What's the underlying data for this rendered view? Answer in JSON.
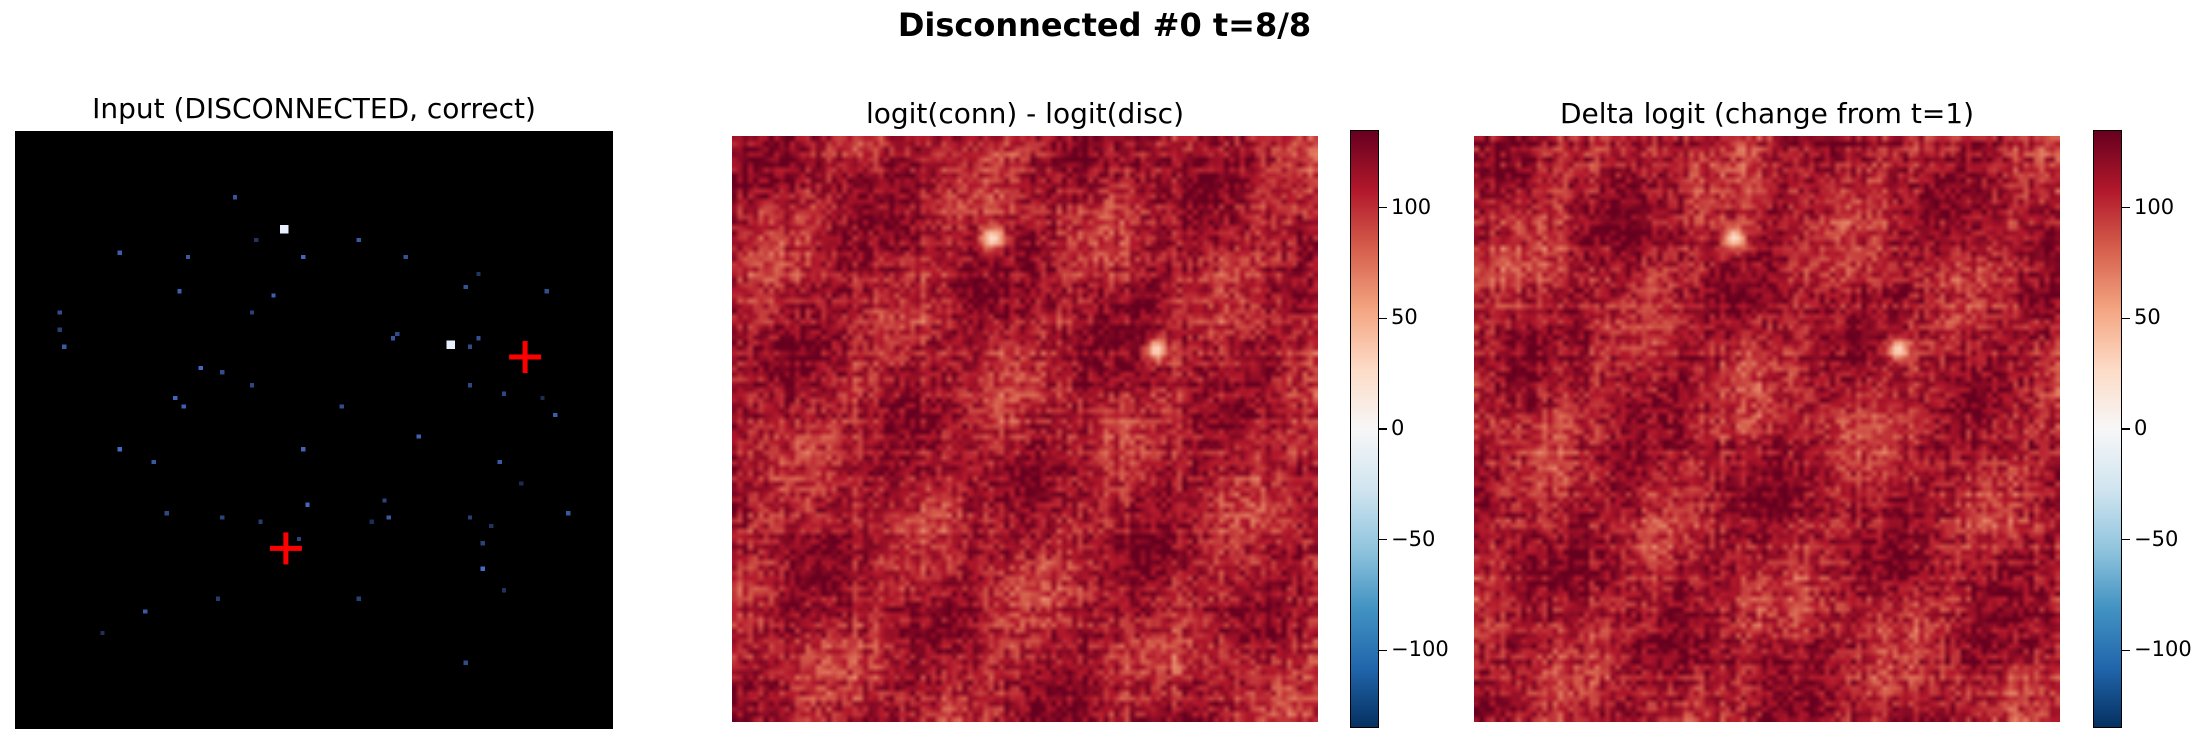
{
  "figure": {
    "title": "Disconnected #0  t=8/8"
  },
  "chart_data": [
    {
      "type": "heatmap",
      "title": "Input (DISCONNECTED, correct)",
      "colormap": "Blues_r",
      "background": "#000000",
      "markers": [
        {
          "symbol": "+",
          "color": "#ff0000",
          "x": 0.853,
          "y": 0.378
        },
        {
          "symbol": "+",
          "color": "#ff0000",
          "x": 0.453,
          "y": 0.698
        }
      ],
      "axes": "off"
    },
    {
      "type": "heatmap",
      "title": "logit(conn) - logit(disc)",
      "colormap": "RdBu_r",
      "vmin": -135,
      "vmax": 135,
      "colorbar_ticks": [
        "100",
        "50",
        "0",
        "−50",
        "−100"
      ],
      "colorbar_tick_values": [
        100,
        50,
        0,
        -50,
        -100
      ],
      "hotspots": [
        {
          "x": 0.44,
          "y": 0.17,
          "value": 20
        },
        {
          "x": 0.72,
          "y": 0.36,
          "value": 25
        }
      ],
      "axes": "off"
    },
    {
      "type": "heatmap",
      "title": "Delta logit (change from t=1)",
      "colormap": "RdBu_r",
      "vmin": -135,
      "vmax": 135,
      "colorbar_ticks": [
        "100",
        "50",
        "0",
        "−50",
        "−100"
      ],
      "colorbar_tick_values": [
        100,
        50,
        0,
        -50,
        -100
      ],
      "hotspots": [
        {
          "x": 0.44,
          "y": 0.17,
          "value": 20
        },
        {
          "x": 0.72,
          "y": 0.36,
          "value": 25
        }
      ],
      "axes": "off"
    }
  ]
}
